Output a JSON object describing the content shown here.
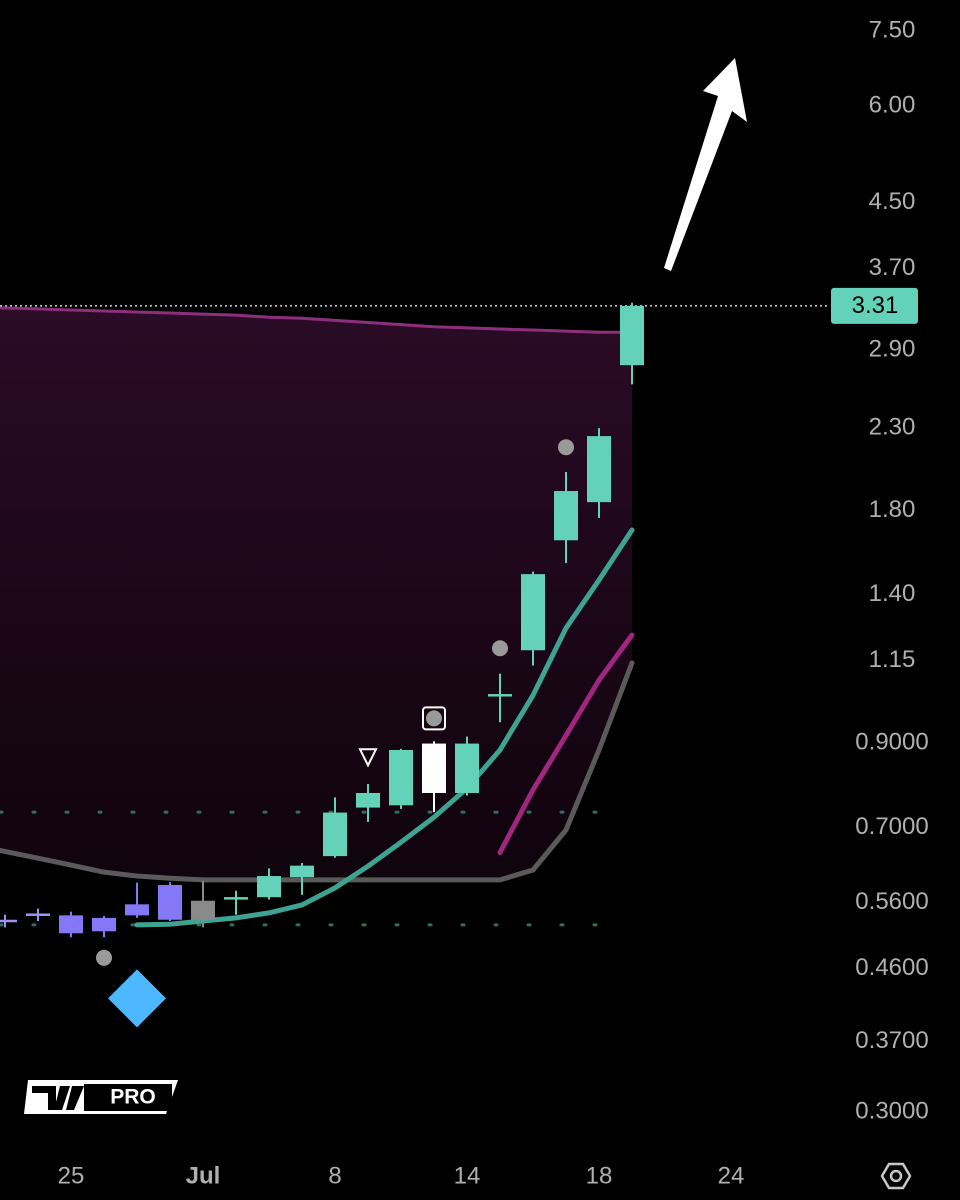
{
  "chart_data": {
    "type": "candlestick",
    "log": true,
    "ylim": [
      0.268,
      8.23
    ],
    "yticks": [
      {
        "value": 7.5,
        "label": "7.50"
      },
      {
        "value": 6,
        "label": "6.00"
      },
      {
        "value": 4.5,
        "label": "4.50"
      },
      {
        "value": 3.7,
        "label": "3.70"
      },
      {
        "value": 2.9,
        "label": "2.90"
      },
      {
        "value": 2.3,
        "label": "2.30"
      },
      {
        "value": 1.8,
        "label": "1.80"
      },
      {
        "value": 1.4,
        "label": "1.40"
      },
      1.15,
      {
        "value": 0.9,
        "label": "0.9000"
      },
      {
        "value": 0.7,
        "label": "0.7000"
      },
      {
        "value": 0.56,
        "label": "0.5600"
      },
      {
        "value": 0.46,
        "label": "0.4600"
      },
      {
        "value": 0.37,
        "label": "0.3700"
      },
      {
        "value": 0.3,
        "label": "0.3000"
      }
    ],
    "categories": [
      null,
      null,
      "25",
      null,
      null,
      null,
      "Jul",
      null,
      null,
      null,
      "8",
      null,
      null,
      null,
      "14",
      null,
      null,
      null,
      "18",
      null,
      null,
      null,
      "24"
    ],
    "candles": {
      "open": [
        0.53,
        0.54,
        0.539,
        0.535,
        0.539,
        0.532,
        0.532,
        0.567,
        0.569,
        0.604,
        0.643,
        0.743,
        0.748,
        0.776,
        0.776,
        1.038,
        1.187,
        1.647,
        1.845,
        2.774,
        null,
        null,
        null
      ],
      "high": [
        0.54,
        0.55,
        0.545,
        0.538,
        0.594,
        0.595,
        0.597,
        0.58,
        0.62,
        0.63,
        0.766,
        0.797,
        0.885,
        0.905,
        0.918,
        1.107,
        1.5,
        2.018,
        2.3,
        3.34,
        null,
        null,
        null
      ],
      "low": [
        0.52,
        0.53,
        0.505,
        0.505,
        0.535,
        0.53,
        0.52,
        0.54,
        0.565,
        0.573,
        0.64,
        0.712,
        0.74,
        0.733,
        0.77,
        0.958,
        1.134,
        1.539,
        1.76,
        2.62,
        null,
        null,
        null
      ],
      "close": [
        0.53,
        0.54,
        0.511,
        0.514,
        0.557,
        0.59,
        0.563,
        0.567,
        0.606,
        0.625,
        0.732,
        0.776,
        0.882,
        0.899,
        0.899,
        1.038,
        1.489,
        1.907,
        2.246,
        3.31,
        null,
        null,
        null
      ],
      "colors": [
        "#9b93f4",
        "#9b93f4",
        "#8478f6",
        "#8478f6",
        "#8478f6",
        "#8478f6",
        "#8a8a8a",
        "#64d2b8",
        "#64d2b8",
        "#64d2b8",
        "#64d2b8",
        "#64d2b8",
        "#64d2b8",
        "#ffffff",
        "#64d2b8",
        "#64d2b8",
        "#64d2b8",
        "#64d2b8",
        "#64d2b8",
        "#64d2b8",
        null,
        null,
        null
      ]
    },
    "overlays": [
      {
        "color": "#8e2f7e",
        "values": [
          3.29,
          3.28,
          3.27,
          3.26,
          3.25,
          3.24,
          3.23,
          3.22,
          3.2,
          3.19,
          3.17,
          3.15,
          3.13,
          3.11,
          3.1,
          3.09,
          3.08,
          3.07,
          3.06,
          3.06,
          null,
          null,
          null
        ]
      },
      {
        "color": "#5a5a5a",
        "values": [
          0.654,
          0.639,
          0.626,
          0.613,
          0.606,
          0.602,
          0.599,
          0.599,
          0.599,
          0.599,
          0.599,
          0.599,
          0.599,
          0.599,
          0.599,
          0.599,
          0.617,
          0.695,
          0.882,
          1.143,
          null,
          null,
          null
        ]
      },
      {
        "color": "#a0267f",
        "values": [
          null,
          null,
          null,
          null,
          null,
          null,
          null,
          null,
          null,
          null,
          null,
          null,
          null,
          null,
          null,
          0.65,
          0.783,
          0.921,
          1.086,
          1.242,
          null,
          null,
          null
        ]
      },
      {
        "color": "#3fa391",
        "values": [
          null,
          null,
          null,
          null,
          0.524,
          0.525,
          0.53,
          0.535,
          0.543,
          0.556,
          0.585,
          0.624,
          0.67,
          0.722,
          0.787,
          0.882,
          1.038,
          1.268,
          1.463,
          1.698,
          null,
          null,
          null
        ]
      }
    ],
    "levels": [
      0.733,
      0.524
    ],
    "markers": [
      {
        "index": 3,
        "value": 0.475,
        "shape": "circle",
        "color": "#9a9a9a"
      },
      {
        "index": 15,
        "value": 1.194,
        "shape": "circle",
        "color": "#9a9a9a"
      },
      {
        "index": 17,
        "value": 2.173,
        "shape": "circle",
        "color": "#9a9a9a"
      },
      {
        "index": 13,
        "value": 0.969,
        "shape": "square-circle",
        "color": "#9a9a9a"
      },
      {
        "index": 11,
        "value": 0.863,
        "shape": "triangle",
        "color": "#ffffff"
      },
      {
        "index": 4,
        "value": 0.421,
        "shape": "diamond",
        "color": "#4db8ff"
      }
    ],
    "last_price": 3.31,
    "last_color": "#64d2b8",
    "watermark": "PRO"
  }
}
